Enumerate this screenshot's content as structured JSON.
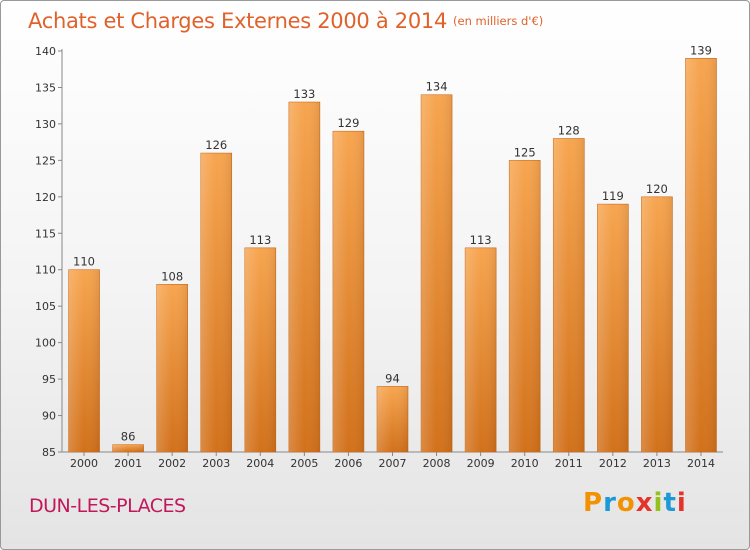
{
  "title": "Achats et Charges Externes 2000 à 2014",
  "subtitle": "(en milliers d'€)",
  "place": "DUN-LES-PLACES",
  "brand": {
    "letters": [
      "P",
      "r",
      "o",
      "x",
      "i",
      "t",
      "i"
    ],
    "colors": [
      "#f39200",
      "#1d9ad6",
      "#f39200",
      "#e6332a",
      "#95c11f",
      "#1d9ad6",
      "#e6332a"
    ]
  },
  "chart_data": {
    "type": "bar",
    "categories": [
      "2000",
      "2001",
      "2002",
      "2003",
      "2004",
      "2005",
      "2006",
      "2007",
      "2008",
      "2009",
      "2010",
      "2011",
      "2012",
      "2013",
      "2014"
    ],
    "values": [
      110,
      86,
      108,
      126,
      113,
      133,
      129,
      94,
      134,
      113,
      125,
      128,
      119,
      120,
      139
    ],
    "ylim": [
      85,
      140
    ],
    "yticks": [
      85,
      90,
      95,
      100,
      105,
      110,
      115,
      120,
      125,
      130,
      135,
      140
    ],
    "grid": false,
    "bar_color": "#f0922e"
  }
}
